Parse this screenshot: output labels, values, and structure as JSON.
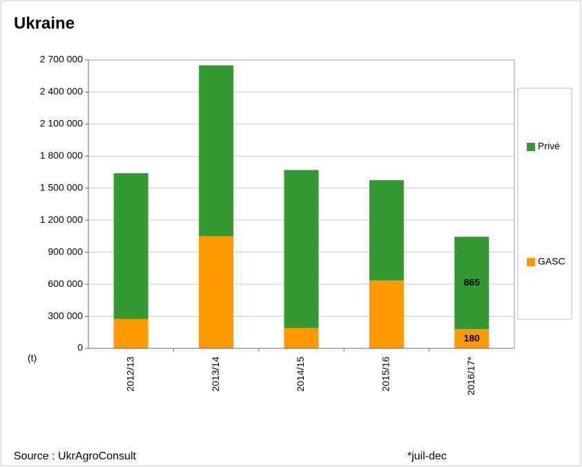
{
  "chart_data": {
    "type": "stacked_bar",
    "title": "Ukraine",
    "y_unit_label": "(t)",
    "categories": [
      "2012/13",
      "2013/14",
      "2014/15",
      "2015/16",
      "2016/17*"
    ],
    "series": [
      {
        "name": "GASC",
        "color": "#ff9900",
        "values": [
          275000,
          1050000,
          190000,
          635000,
          180000
        ],
        "value_labels": [
          null,
          null,
          null,
          null,
          "180"
        ]
      },
      {
        "name": "Privé",
        "color": "#339933",
        "values": [
          1365000,
          1600000,
          1480000,
          940000,
          865000
        ],
        "value_labels": [
          null,
          null,
          null,
          null,
          "865"
        ]
      }
    ],
    "ylim": [
      0,
      2700000
    ],
    "yticks": [
      0,
      {
        "value": 300000,
        "label": "300 000"
      },
      {
        "value": 600000,
        "label": "600 000"
      },
      {
        "value": 900000,
        "label": "900 000"
      },
      {
        "value": 1200000,
        "label": "1 200 000"
      },
      {
        "value": 1500000,
        "label": "1 500 000"
      },
      {
        "value": 1800000,
        "label": "1 800 000"
      },
      {
        "value": 2100000,
        "label": "2 100 000"
      },
      {
        "value": 2400000,
        "label": "2 400 000"
      },
      {
        "value": 2700000,
        "label": "2 700 000"
      }
    ],
    "grid": true,
    "source": "Source : UkrAgroConsult",
    "footnote": "*juil-dec"
  }
}
